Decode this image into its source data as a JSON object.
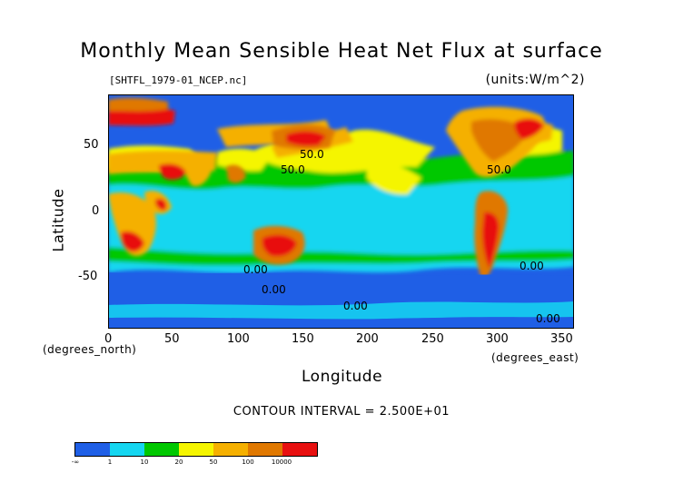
{
  "title": "Monthly Mean Sensible Heat Net Flux at surface",
  "file_label": "[SHTFL_1979-01_NCEP.nc]",
  "units_label": "(units:W/m^2)",
  "axes": {
    "x_title": "Longitude",
    "y_title": "Latitude",
    "x_unit": "(degrees_east)",
    "y_unit": "(degrees_north)",
    "x_ticks": [
      "0",
      "50",
      "100",
      "150",
      "200",
      "250",
      "300",
      "350"
    ],
    "x_tick_values": [
      0,
      50,
      100,
      150,
      200,
      250,
      300,
      350
    ],
    "y_ticks": [
      "50",
      "0",
      "-50"
    ],
    "y_tick_values": [
      50,
      0,
      -50
    ],
    "x_range": [
      0,
      360
    ],
    "y_range": [
      -90,
      90
    ]
  },
  "contour_interval": "CONTOUR INTERVAL = 2.500E+01",
  "contour_labels": [
    "50.0",
    "50.0",
    "50.0",
    "0.00",
    "0.00",
    "0.00",
    "0.00",
    "0.00"
  ],
  "colorbar": {
    "colors": [
      "#1f5fe6",
      "#15d6f0",
      "#00c800",
      "#f5f500",
      "#f5b000",
      "#e07800",
      "#e81010"
    ],
    "labels": [
      "-∞",
      "1",
      "10",
      "20",
      "50",
      "100",
      "10000"
    ]
  }
}
